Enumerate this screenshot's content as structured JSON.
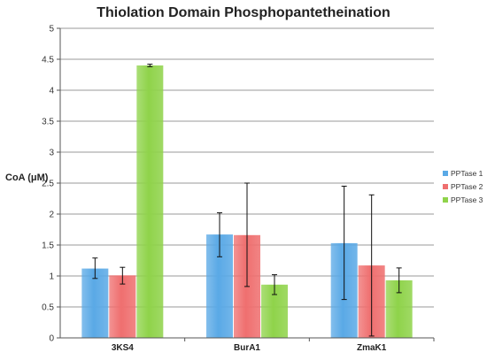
{
  "chart_data": {
    "type": "bar",
    "title": "Thiolation Domain Phosphopantetheination",
    "ylabel": "CoA (μM)",
    "xlabel": "",
    "ylim": [
      0,
      5
    ],
    "yticks": [
      "0",
      "0.5",
      "1",
      "1.5",
      "2",
      "2.5",
      "3",
      "3.5",
      "4",
      "4.5",
      "5"
    ],
    "categories": [
      "3KS4",
      "BurA1",
      "ZmaK1"
    ],
    "series": [
      {
        "name": "PPTase 1",
        "color": "#5aa9e6",
        "values": [
          1.12,
          1.67,
          1.53
        ],
        "err_low": [
          0.96,
          1.31,
          0.62
        ],
        "err_high": [
          1.29,
          2.02,
          2.45
        ]
      },
      {
        "name": "PPTase 2",
        "color": "#ef6f6f",
        "values": [
          1.01,
          1.66,
          1.17
        ],
        "err_low": [
          0.87,
          0.83,
          0.03
        ],
        "err_high": [
          1.14,
          2.5,
          2.31
        ]
      },
      {
        "name": "PPTase 3",
        "color": "#8fd34a",
        "values": [
          4.4,
          0.86,
          0.93
        ],
        "err_low": [
          4.38,
          0.7,
          0.73
        ],
        "err_high": [
          4.42,
          1.02,
          1.13
        ]
      }
    ],
    "grid": true,
    "legend": "right"
  }
}
